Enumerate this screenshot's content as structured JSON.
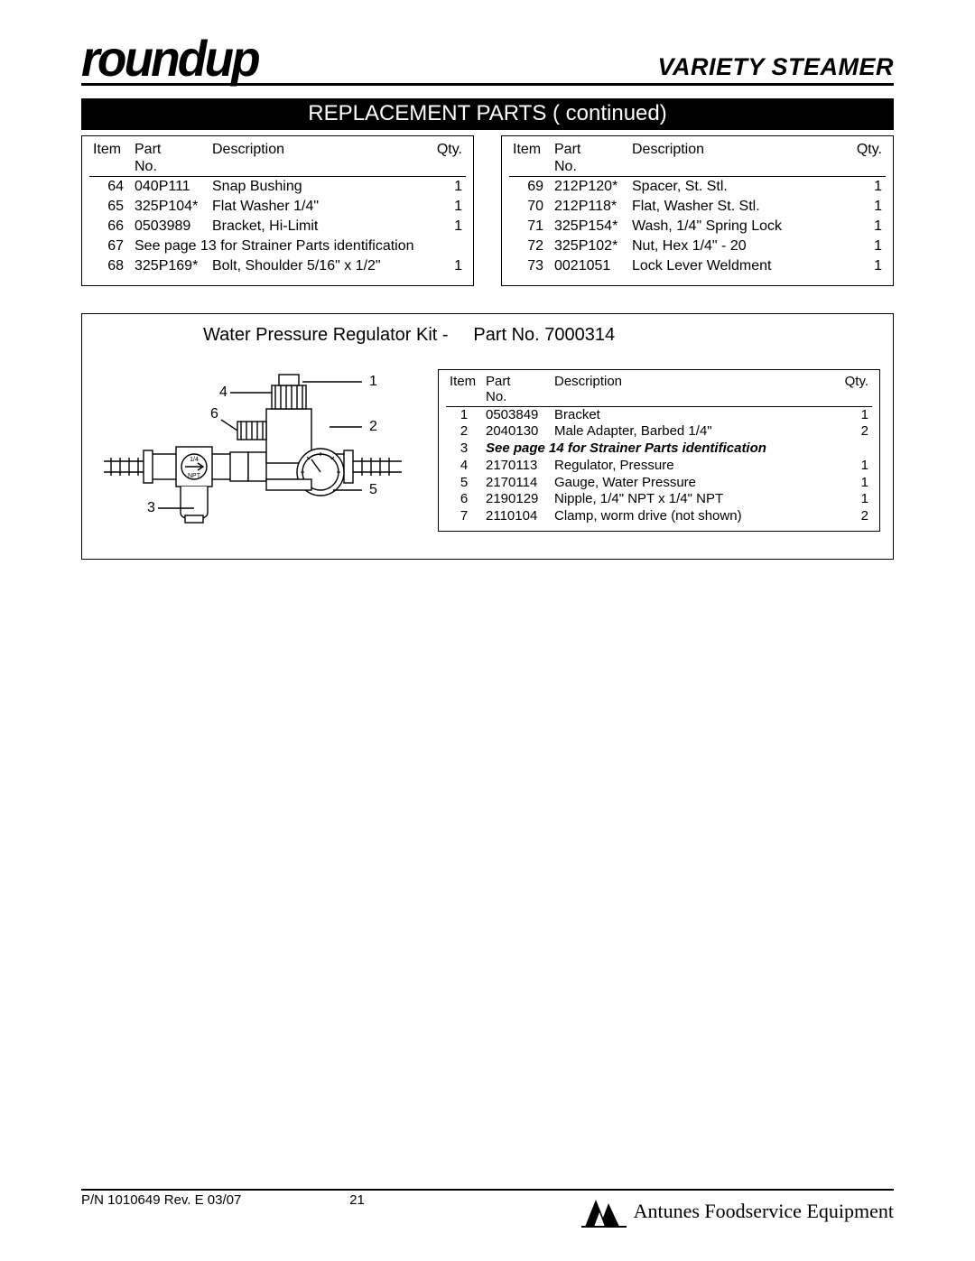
{
  "brand": "roundup",
  "doc_title": "VARIETY STEAMER",
  "section_title": "REPLACEMENT PARTS ( continued)",
  "columns": {
    "item": "Item",
    "part": "Part",
    "part2": "No.",
    "desc": "Description",
    "qty": "Qty."
  },
  "left_rows": [
    {
      "item": "64",
      "part": "040P111",
      "desc": "Snap Bushing",
      "qty": "1"
    },
    {
      "item": "65",
      "part": "325P104*",
      "desc": "Flat Washer 1/4\"",
      "qty": "1"
    },
    {
      "item": "66",
      "part": "0503989",
      "desc": "Bracket, Hi-Limit",
      "qty": "1"
    },
    {
      "item": "67",
      "note": "See page 13 for Strainer Parts identification"
    },
    {
      "item": "68",
      "part": "325P169*",
      "desc": "Bolt, Shoulder 5/16\" x 1/2\"",
      "qty": "1"
    }
  ],
  "right_rows": [
    {
      "item": "69",
      "part": "212P120*",
      "desc": "Spacer, St. Stl.",
      "qty": "1"
    },
    {
      "item": "70",
      "part": "212P118*",
      "desc": "Flat, Washer St. Stl.",
      "qty": "1"
    },
    {
      "item": "71",
      "part": "325P154*",
      "desc": "Wash, 1/4\" Spring Lock",
      "qty": "1"
    },
    {
      "item": "72",
      "part": "325P102*",
      "desc": "Nut, Hex 1/4\" - 20",
      "qty": "1"
    },
    {
      "item": "73",
      "part": "0021051",
      "desc": "Lock Lever Weldment",
      "qty": "1"
    }
  ],
  "kit": {
    "title_a": "Water  Pressure  Regulator Kit -",
    "title_b": "Part No. 7000314",
    "rows": [
      {
        "item": "1",
        "part": "0503849",
        "desc": "Bracket",
        "qty": "1"
      },
      {
        "item": "2",
        "part": "2040130",
        "desc": "Male Adapter, Barbed 1/4\"",
        "qty": "2"
      },
      {
        "item": "3",
        "note": "See page 14 for Strainer Parts identification"
      },
      {
        "item": "4",
        "part": "2170113",
        "desc": "Regulator, Pressure",
        "qty": "1"
      },
      {
        "item": "5",
        "part": "2170114",
        "desc": "Gauge, Water Pressure",
        "qty": "1"
      },
      {
        "item": "6",
        "part": "2190129",
        "desc": "Nipple, 1/4\" NPT x 1/4\" NPT",
        "qty": "1"
      },
      {
        "item": "7",
        "part": "2110104",
        "desc": "Clamp, worm drive (not shown)",
        "qty": "2"
      }
    ],
    "callouts": {
      "1": "1",
      "2": "2",
      "3": "3",
      "4": "4",
      "5": "5",
      "6": "6"
    },
    "npt_label_top": "1/4",
    "npt_label_bot": "NPT"
  },
  "footer": {
    "pn": "P/N 1010649 Rev. E 03/07",
    "page": "21",
    "company": "Antunes Foodservice Equipment"
  },
  "colors": {
    "ink": "#000000",
    "bg": "#ffffff"
  }
}
